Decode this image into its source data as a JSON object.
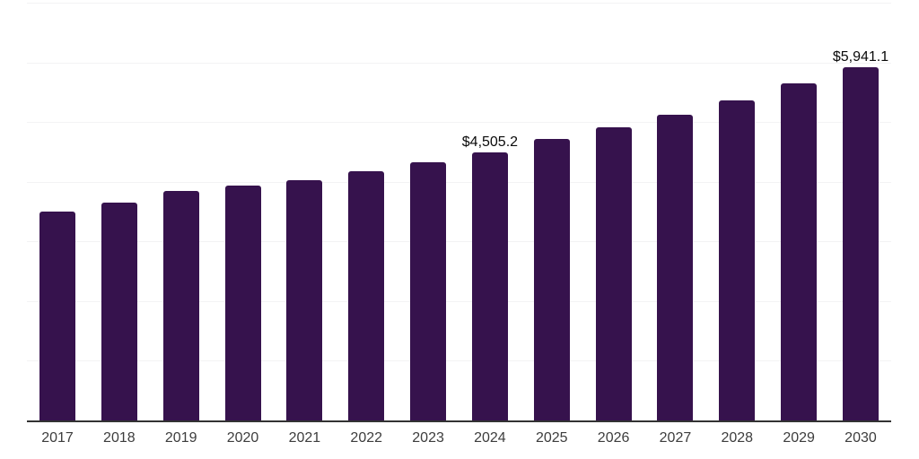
{
  "chart_data": {
    "type": "bar",
    "title": "",
    "xlabel": "",
    "ylabel": "",
    "categories": [
      "2017",
      "2018",
      "2019",
      "2020",
      "2021",
      "2022",
      "2023",
      "2024",
      "2025",
      "2026",
      "2027",
      "2028",
      "2029",
      "2030"
    ],
    "values": [
      3510,
      3665,
      3860,
      3955,
      4045,
      4195,
      4340,
      4505.2,
      4730,
      4925,
      5135,
      5375,
      5660,
      5941.1
    ],
    "data_labels": [
      "",
      "",
      "",
      "",
      "",
      "",
      "",
      "$4,505.2",
      "",
      "",
      "",
      "",
      "",
      "$5,941.1"
    ],
    "ylim": [
      0,
      7000
    ],
    "gridline_step": 1000,
    "grid": true,
    "legend": "none",
    "y_tick_labels_visible": false,
    "colors": {
      "bar": "#36124D",
      "gridline": "#f3f3f4",
      "axis_line": "#333333",
      "tick_label": "#3d3d3d",
      "data_label": "#0a0a0a",
      "background": "#ffffff"
    }
  }
}
